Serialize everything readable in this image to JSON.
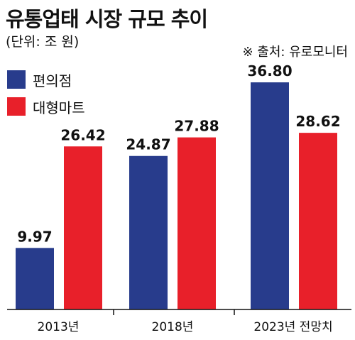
{
  "chart_data": {
    "type": "bar",
    "title": "유통업태 시장 규모 추이",
    "unit": "(단위: 조 원)",
    "source": "※ 출처: 유로모니터",
    "categories": [
      "2013년",
      "2018년",
      "2023년 전망치"
    ],
    "series": [
      {
        "name": "편의점",
        "color": "#283c8c",
        "values": [
          9.97,
          24.87,
          36.8
        ],
        "labels": [
          "9.97",
          "24.87",
          "36.80"
        ]
      },
      {
        "name": "대형마트",
        "color": "#e8202a",
        "values": [
          26.42,
          27.88,
          28.62
        ],
        "labels": [
          "26.42",
          "27.88",
          "28.62"
        ]
      }
    ],
    "ylim": [
      0,
      40
    ],
    "grid": false,
    "legend_position": "top-left"
  }
}
